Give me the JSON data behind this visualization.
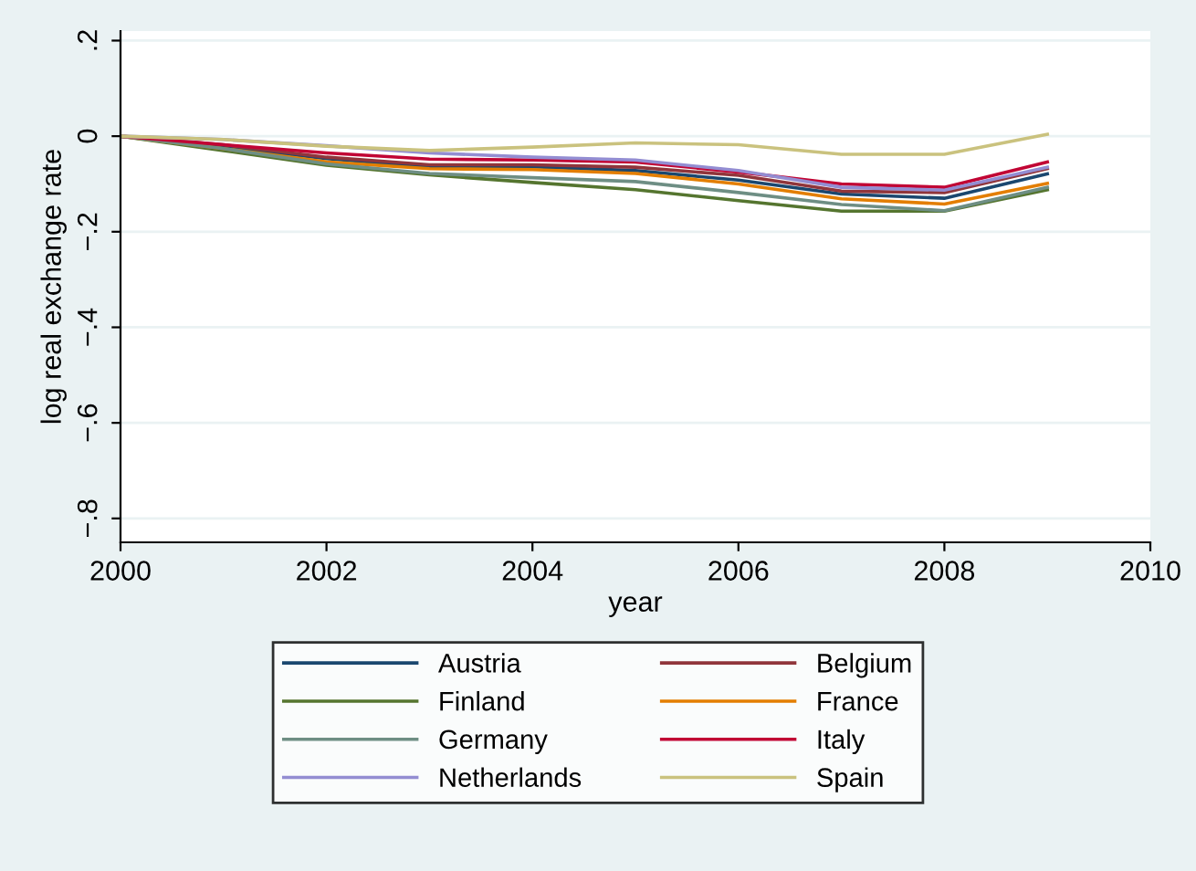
{
  "chart_data": {
    "type": "line",
    "xlabel": "year",
    "ylabel": "log real exchange rate",
    "x": [
      2000,
      2001,
      2002,
      2003,
      2004,
      2005,
      2006,
      2007,
      2008,
      2009
    ],
    "xlim": [
      2000,
      2010
    ],
    "xticks": [
      2000,
      2002,
      2004,
      2006,
      2008,
      2010
    ],
    "ylim": [
      -0.85,
      0.22
    ],
    "yticks": [
      {
        "value": -0.8,
        "label": "−.8"
      },
      {
        "value": -0.6,
        "label": "−.6"
      },
      {
        "value": -0.4,
        "label": "−.4"
      },
      {
        "value": -0.2,
        "label": "−.2"
      },
      {
        "value": 0,
        "label": "0"
      },
      {
        "value": 0.2,
        "label": ".2"
      }
    ],
    "grid": "y",
    "legend": "bottom",
    "line_style": "solid",
    "series": [
      {
        "name": "Austria",
        "color": "#1a476f",
        "values": [
          0,
          -0.022,
          -0.047,
          -0.064,
          -0.064,
          -0.072,
          -0.092,
          -0.121,
          -0.13,
          -0.079
        ]
      },
      {
        "name": "Belgium",
        "color": "#90353b",
        "values": [
          0,
          -0.018,
          -0.044,
          -0.06,
          -0.06,
          -0.065,
          -0.082,
          -0.115,
          -0.118,
          -0.068
        ]
      },
      {
        "name": "Finland",
        "color": "#55752f",
        "values": [
          0,
          -0.03,
          -0.061,
          -0.081,
          -0.097,
          -0.112,
          -0.135,
          -0.157,
          -0.157,
          -0.112
        ]
      },
      {
        "name": "France",
        "color": "#e37e00",
        "values": [
          0,
          -0.026,
          -0.054,
          -0.068,
          -0.07,
          -0.078,
          -0.1,
          -0.131,
          -0.142,
          -0.099
        ]
      },
      {
        "name": "Germany",
        "color": "#6e8e84",
        "values": [
          0,
          -0.026,
          -0.058,
          -0.078,
          -0.087,
          -0.095,
          -0.118,
          -0.143,
          -0.156,
          -0.107
        ]
      },
      {
        "name": "Italy",
        "color": "#c10534",
        "values": [
          0,
          -0.018,
          -0.035,
          -0.048,
          -0.05,
          -0.054,
          -0.075,
          -0.1,
          -0.107,
          -0.054
        ]
      },
      {
        "name": "Netherlands",
        "color": "#938dd2",
        "values": [
          0,
          -0.007,
          -0.02,
          -0.035,
          -0.044,
          -0.05,
          -0.072,
          -0.107,
          -0.113,
          -0.065
        ]
      },
      {
        "name": "Spain",
        "color": "#cac27e",
        "values": [
          0,
          -0.007,
          -0.021,
          -0.03,
          -0.023,
          -0.014,
          -0.018,
          -0.038,
          -0.038,
          0.004
        ]
      }
    ]
  }
}
